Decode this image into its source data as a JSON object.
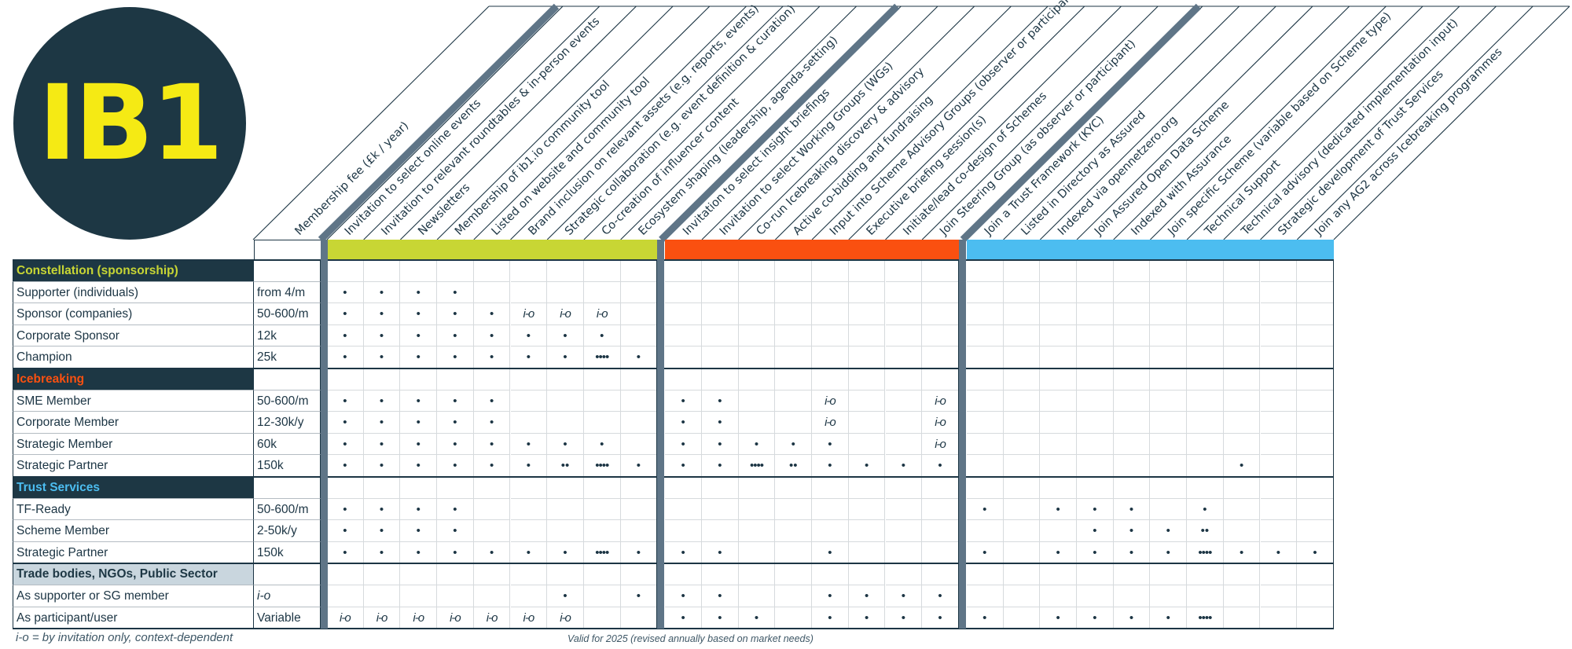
{
  "logo": {
    "text": "IB1"
  },
  "header": {
    "fee_label": "Membership fee (£k / year)",
    "benefits": [
      "Invitation to select online events",
      "Invitation to relevant roundtables & in-person events",
      "Newsletters",
      "Membership of ib1.io community tool",
      "Listed on website and community tool",
      "Brand inclusion on relevant assets (e.g. reports, events)",
      "Strategic collaboration (e.g. event definition & curation)",
      "Co-creation of influencer content",
      "Ecosystem shaping (leadership, agenda-setting)",
      "Invitation to select insight briefings",
      "Invitation to select Working Groups (WGs)",
      "Co-run Icebreaking discovery & advisory",
      "Active co-bidding and fundraising",
      "Input into Scheme Advisory Groups (observer or participant)",
      "Executive briefing session(s)",
      "Initiate/lead co-design of Schemes",
      "Join Steering Group (as observer or participant)",
      "Join a Trust Framework (KYC)",
      "Listed in Directory as Assured",
      "Indexed via opennetzero.org",
      "Join Assured Open Data Scheme",
      "Indexed with Assurance",
      "Join specific Scheme (variable based on Scheme type)",
      "Technical Support",
      "Technical advisory (dedicated implementation input)",
      "Strategic development of Trust Services",
      "Join any AG2 across Icebreaking programmes"
    ]
  },
  "colors": {
    "navy": "#1d3744",
    "yellow": "#f5ea14",
    "lime": "#c8d634",
    "orange": "#fa5010",
    "blue": "#4cbdf0",
    "divider": "#5f7587",
    "light_section": "#c9d6de"
  },
  "sections": [
    {
      "title": "Constellation (sponsorship)",
      "title_color": "#c8d634",
      "bg": "#1d3744",
      "rows": [
        {
          "label": "Supporter (individuals)",
          "fee": "from 4/m",
          "cells": [
            "•",
            "•",
            "•",
            "•",
            "",
            "",
            "",
            "",
            "",
            "",
            "",
            "",
            "",
            "",
            "",
            "",
            "",
            "",
            "",
            "",
            "",
            "",
            "",
            "",
            "",
            "",
            ""
          ]
        },
        {
          "label": "Sponsor (companies)",
          "fee": "50-600/m",
          "cells": [
            "•",
            "•",
            "•",
            "•",
            "•",
            "i-o",
            "i-o",
            "i-o",
            "",
            "",
            "",
            "",
            "",
            "",
            "",
            "",
            "",
            "",
            "",
            "",
            "",
            "",
            "",
            "",
            "",
            "",
            ""
          ]
        },
        {
          "label": "Corporate Sponsor",
          "fee": "12k",
          "cells": [
            "•",
            "•",
            "•",
            "•",
            "•",
            "•",
            "•",
            "•",
            "",
            "",
            "",
            "",
            "",
            "",
            "",
            "",
            "",
            "",
            "",
            "",
            "",
            "",
            "",
            "",
            "",
            "",
            ""
          ]
        },
        {
          "label": "Champion",
          "fee": "25k",
          "cells": [
            "•",
            "•",
            "•",
            "•",
            "•",
            "•",
            "•",
            "••••",
            "•",
            "",
            "",
            "",
            "",
            "",
            "",
            "",
            "",
            "",
            "",
            "",
            "",
            "",
            "",
            "",
            "",
            "",
            ""
          ]
        }
      ]
    },
    {
      "title": "Icebreaking",
      "title_color": "#fa5010",
      "bg": "#1d3744",
      "rows": [
        {
          "label": "SME Member",
          "fee": "50-600/m",
          "cells": [
            "•",
            "•",
            "•",
            "•",
            "•",
            "",
            "",
            "",
            "",
            "•",
            "•",
            "",
            "",
            "i-o",
            "",
            "",
            "i-o",
            "",
            "",
            "",
            "",
            "",
            "",
            "",
            "",
            "",
            ""
          ]
        },
        {
          "label": "Corporate Member",
          "fee": "12-30k/y",
          "cells": [
            "•",
            "•",
            "•",
            "•",
            "•",
            "",
            "",
            "",
            "",
            "•",
            "•",
            "",
            "",
            "i-o",
            "",
            "",
            "i-o",
            "",
            "",
            "",
            "",
            "",
            "",
            "",
            "",
            "",
            ""
          ]
        },
        {
          "label": "Strategic Member",
          "fee": "60k",
          "cells": [
            "•",
            "•",
            "•",
            "•",
            "•",
            "•",
            "•",
            "•",
            "",
            "•",
            "•",
            "•",
            "•",
            "•",
            "",
            "",
            "i-o",
            "",
            "",
            "",
            "",
            "",
            "",
            "",
            "",
            "",
            ""
          ]
        },
        {
          "label": "Strategic Partner",
          "fee": "150k",
          "cells": [
            "•",
            "•",
            "•",
            "•",
            "•",
            "•",
            "••",
            "••••",
            "•",
            "•",
            "•",
            "••••",
            "••",
            "•",
            "•",
            "•",
            "•",
            "",
            "",
            "",
            "",
            "",
            "",
            "",
            "•",
            "",
            ""
          ]
        }
      ]
    },
    {
      "title": "Trust Services",
      "title_color": "#4cbdf0",
      "bg": "#1d3744",
      "rows": [
        {
          "label": "TF-Ready",
          "fee": "50-600/m",
          "cells": [
            "•",
            "•",
            "•",
            "•",
            "",
            "",
            "",
            "",
            "",
            "",
            "",
            "",
            "",
            "",
            "",
            "",
            "",
            "•",
            "",
            "•",
            "•",
            "•",
            "",
            "•",
            "",
            "",
            ""
          ]
        },
        {
          "label": "Scheme Member",
          "fee": "2-50k/y",
          "cells": [
            "•",
            "•",
            "•",
            "•",
            "",
            "",
            "",
            "",
            "",
            "",
            "",
            "",
            "",
            "",
            "",
            "",
            "",
            "",
            "",
            "",
            "•",
            "•",
            "•",
            "••",
            "",
            "",
            ""
          ]
        },
        {
          "label": "Strategic Partner",
          "fee": "150k",
          "cells": [
            "•",
            "•",
            "•",
            "•",
            "•",
            "•",
            "•",
            "••••",
            "•",
            "•",
            "•",
            "",
            "",
            "•",
            "",
            "",
            "",
            "•",
            "",
            "•",
            "•",
            "•",
            "•",
            "••••",
            "•",
            "•",
            "•"
          ]
        }
      ]
    },
    {
      "title": "Trade bodies, NGOs, Public Sector",
      "title_color": "#1d3744",
      "bg": "#c9d6de",
      "rows": [
        {
          "label": "As supporter or SG member",
          "fee": "i-o",
          "cells": [
            "",
            "",
            "",
            "",
            "",
            "",
            "•",
            "",
            "•",
            "•",
            "•",
            "",
            "",
            "•",
            "•",
            "•",
            "•",
            "",
            "",
            "",
            "",
            "",
            "",
            "",
            "",
            "",
            ""
          ]
        },
        {
          "label": "As participant/user",
          "fee": "Variable",
          "cells": [
            "i-o",
            "i-o",
            "i-o",
            "i-o",
            "i-o",
            "i-o",
            "i-o",
            "",
            "",
            "•",
            "•",
            "•",
            "",
            "•",
            "•",
            "•",
            "•",
            "•",
            "",
            "•",
            "•",
            "•",
            "•",
            "••••",
            "",
            "",
            ""
          ]
        }
      ]
    }
  ],
  "footer": {
    "legend": "i-o = by invitation only, context-dependent",
    "validity": "Valid for 2025 (revised annually based on market needs)"
  }
}
